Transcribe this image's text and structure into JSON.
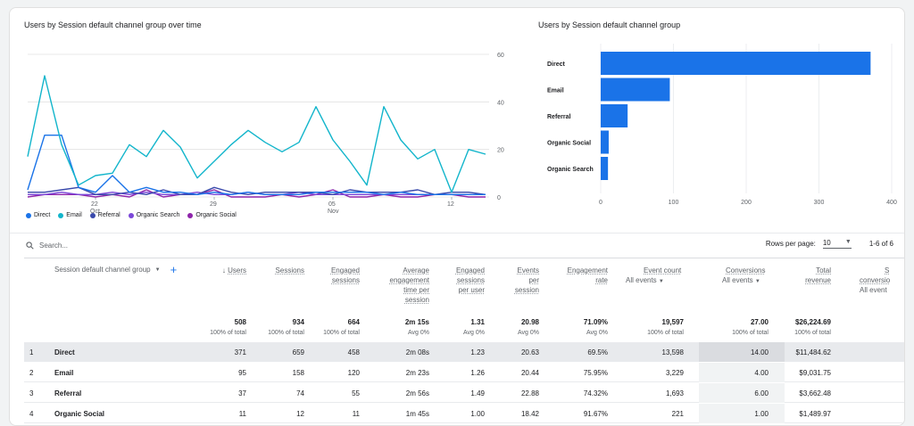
{
  "line_chart": {
    "title": "Users by Session default channel group over time",
    "y_ticks": [
      "60",
      "40",
      "20",
      "0"
    ],
    "x_ticks": [
      {
        "day": "22",
        "month": "Oct"
      },
      {
        "day": "29",
        "month": ""
      },
      {
        "day": "05",
        "month": "Nov"
      },
      {
        "day": "12",
        "month": ""
      }
    ],
    "legend": [
      {
        "label": "Direct",
        "color": "#1a73e8"
      },
      {
        "label": "Email",
        "color": "#12b5cb"
      },
      {
        "label": "Referral",
        "color": "#3949ab"
      },
      {
        "label": "Organic Search",
        "color": "#7b47d8"
      },
      {
        "label": "Organic Social",
        "color": "#8e24aa"
      }
    ]
  },
  "bar_chart": {
    "title": "Users by Session default channel group",
    "x_ticks": [
      "0",
      "100",
      "200",
      "300",
      "400"
    ]
  },
  "chart_data": [
    {
      "type": "line",
      "title": "Users by Session default channel group over time",
      "x": [
        "Oct 18",
        "Oct 19",
        "Oct 20",
        "Oct 21",
        "Oct 22",
        "Oct 23",
        "Oct 24",
        "Oct 25",
        "Oct 26",
        "Oct 27",
        "Oct 28",
        "Oct 29",
        "Oct 30",
        "Oct 31",
        "Nov 1",
        "Nov 2",
        "Nov 3",
        "Nov 4",
        "Nov 5",
        "Nov 6",
        "Nov 7",
        "Nov 8",
        "Nov 9",
        "Nov 10",
        "Nov 11",
        "Nov 12",
        "Nov 13",
        "Nov 14"
      ],
      "ylim": [
        0,
        60
      ],
      "series": [
        {
          "name": "Direct",
          "color": "#1a73e8",
          "values": [
            3,
            26,
            26,
            4,
            2,
            9,
            2,
            4,
            2,
            2,
            1,
            2,
            1,
            2,
            1,
            1,
            1,
            2,
            2,
            2,
            2,
            1,
            2,
            1,
            1,
            1,
            1,
            1
          ]
        },
        {
          "name": "Email",
          "color": "#12b5cb",
          "values": [
            17,
            51,
            22,
            5,
            9,
            10,
            22,
            17,
            28,
            21,
            8,
            15,
            22,
            28,
            23,
            19,
            23,
            38,
            24,
            15,
            5,
            38,
            24,
            16,
            20,
            2,
            20,
            18
          ]
        },
        {
          "name": "Referral",
          "color": "#3949ab",
          "values": [
            2,
            2,
            3,
            4,
            1,
            1,
            2,
            1,
            3,
            1,
            1,
            4,
            2,
            1,
            2,
            2,
            2,
            2,
            1,
            3,
            2,
            2,
            2,
            3,
            1,
            2,
            2,
            1
          ]
        },
        {
          "name": "Organic Search",
          "color": "#7b47d8",
          "values": [
            1,
            1,
            2,
            1,
            1,
            2,
            1,
            2,
            1,
            1,
            2,
            1,
            1,
            2,
            1,
            1,
            2,
            1,
            1,
            1,
            1,
            1,
            1,
            1,
            1,
            1,
            1,
            1
          ]
        },
        {
          "name": "Organic Social",
          "color": "#8e24aa",
          "values": [
            0,
            1,
            1,
            1,
            0,
            1,
            0,
            3,
            0,
            1,
            1,
            3,
            0,
            0,
            0,
            1,
            0,
            1,
            3,
            0,
            0,
            1,
            0,
            0,
            1,
            1,
            0,
            0
          ]
        }
      ]
    },
    {
      "type": "bar",
      "title": "Users by Session default channel group",
      "categories": [
        "Direct",
        "Email",
        "Referral",
        "Organic Social",
        "Organic Search"
      ],
      "values": [
        371,
        95,
        37,
        11,
        10
      ],
      "xlim": [
        0,
        400
      ],
      "color": "#1a73e8"
    }
  ],
  "table": {
    "search_placeholder": "Search...",
    "rows_per_page_label": "Rows per page:",
    "rows_per_page_value": "10",
    "page_range": "1-6 of 6",
    "dimension_header": "Session default channel group",
    "headers": {
      "users": "Users",
      "sessions": "Sessions",
      "engaged1": "Engaged",
      "engaged2": "sessions",
      "aet1": "Average",
      "aet2": "engagement",
      "aet3": "time per",
      "aet4": "session",
      "espu1": "Engaged",
      "espu2": "sessions",
      "espu3": "per user",
      "eps1": "Events",
      "eps2": "per",
      "eps3": "session",
      "er1": "Engagement",
      "er2": "rate",
      "ec1": "Event count",
      "ec2": "All events",
      "conv1": "Conversions",
      "conv2": "All events",
      "rev1": "Total",
      "rev2": "revenue",
      "scr1": "S",
      "scr2": "conversio",
      "scr3": "All event"
    },
    "totals": {
      "users": "508",
      "users_sub": "100% of total",
      "sessions": "934",
      "sessions_sub": "100% of total",
      "engaged": "664",
      "engaged_sub": "100% of total",
      "aet": "2m 15s",
      "aet_sub": "Avg 0%",
      "espu": "1.31",
      "espu_sub": "Avg 0%",
      "eps": "20.98",
      "eps_sub": "Avg 0%",
      "er": "71.09%",
      "er_sub": "Avg 0%",
      "ec": "19,597",
      "ec_sub": "100% of total",
      "conv": "27.00",
      "conv_sub": "100% of total",
      "rev": "$26,224.69",
      "rev_sub": "100% of total"
    },
    "rows": [
      {
        "n": "1",
        "channel": "Direct",
        "users": "371",
        "sessions": "659",
        "engaged": "458",
        "aet": "2m 08s",
        "espu": "1.23",
        "eps": "20.63",
        "er": "69.5%",
        "ec": "13,598",
        "conv": "14.00",
        "rev": "$11,484.62"
      },
      {
        "n": "2",
        "channel": "Email",
        "users": "95",
        "sessions": "158",
        "engaged": "120",
        "aet": "2m 23s",
        "espu": "1.26",
        "eps": "20.44",
        "er": "75.95%",
        "ec": "3,229",
        "conv": "4.00",
        "rev": "$9,031.75"
      },
      {
        "n": "3",
        "channel": "Referral",
        "users": "37",
        "sessions": "74",
        "engaged": "55",
        "aet": "2m 56s",
        "espu": "1.49",
        "eps": "22.88",
        "er": "74.32%",
        "ec": "1,693",
        "conv": "6.00",
        "rev": "$3,662.48"
      },
      {
        "n": "4",
        "channel": "Organic Social",
        "users": "11",
        "sessions": "12",
        "engaged": "11",
        "aet": "1m 45s",
        "espu": "1.00",
        "eps": "18.42",
        "er": "91.67%",
        "ec": "221",
        "conv": "1.00",
        "rev": "$1,489.97"
      }
    ]
  }
}
